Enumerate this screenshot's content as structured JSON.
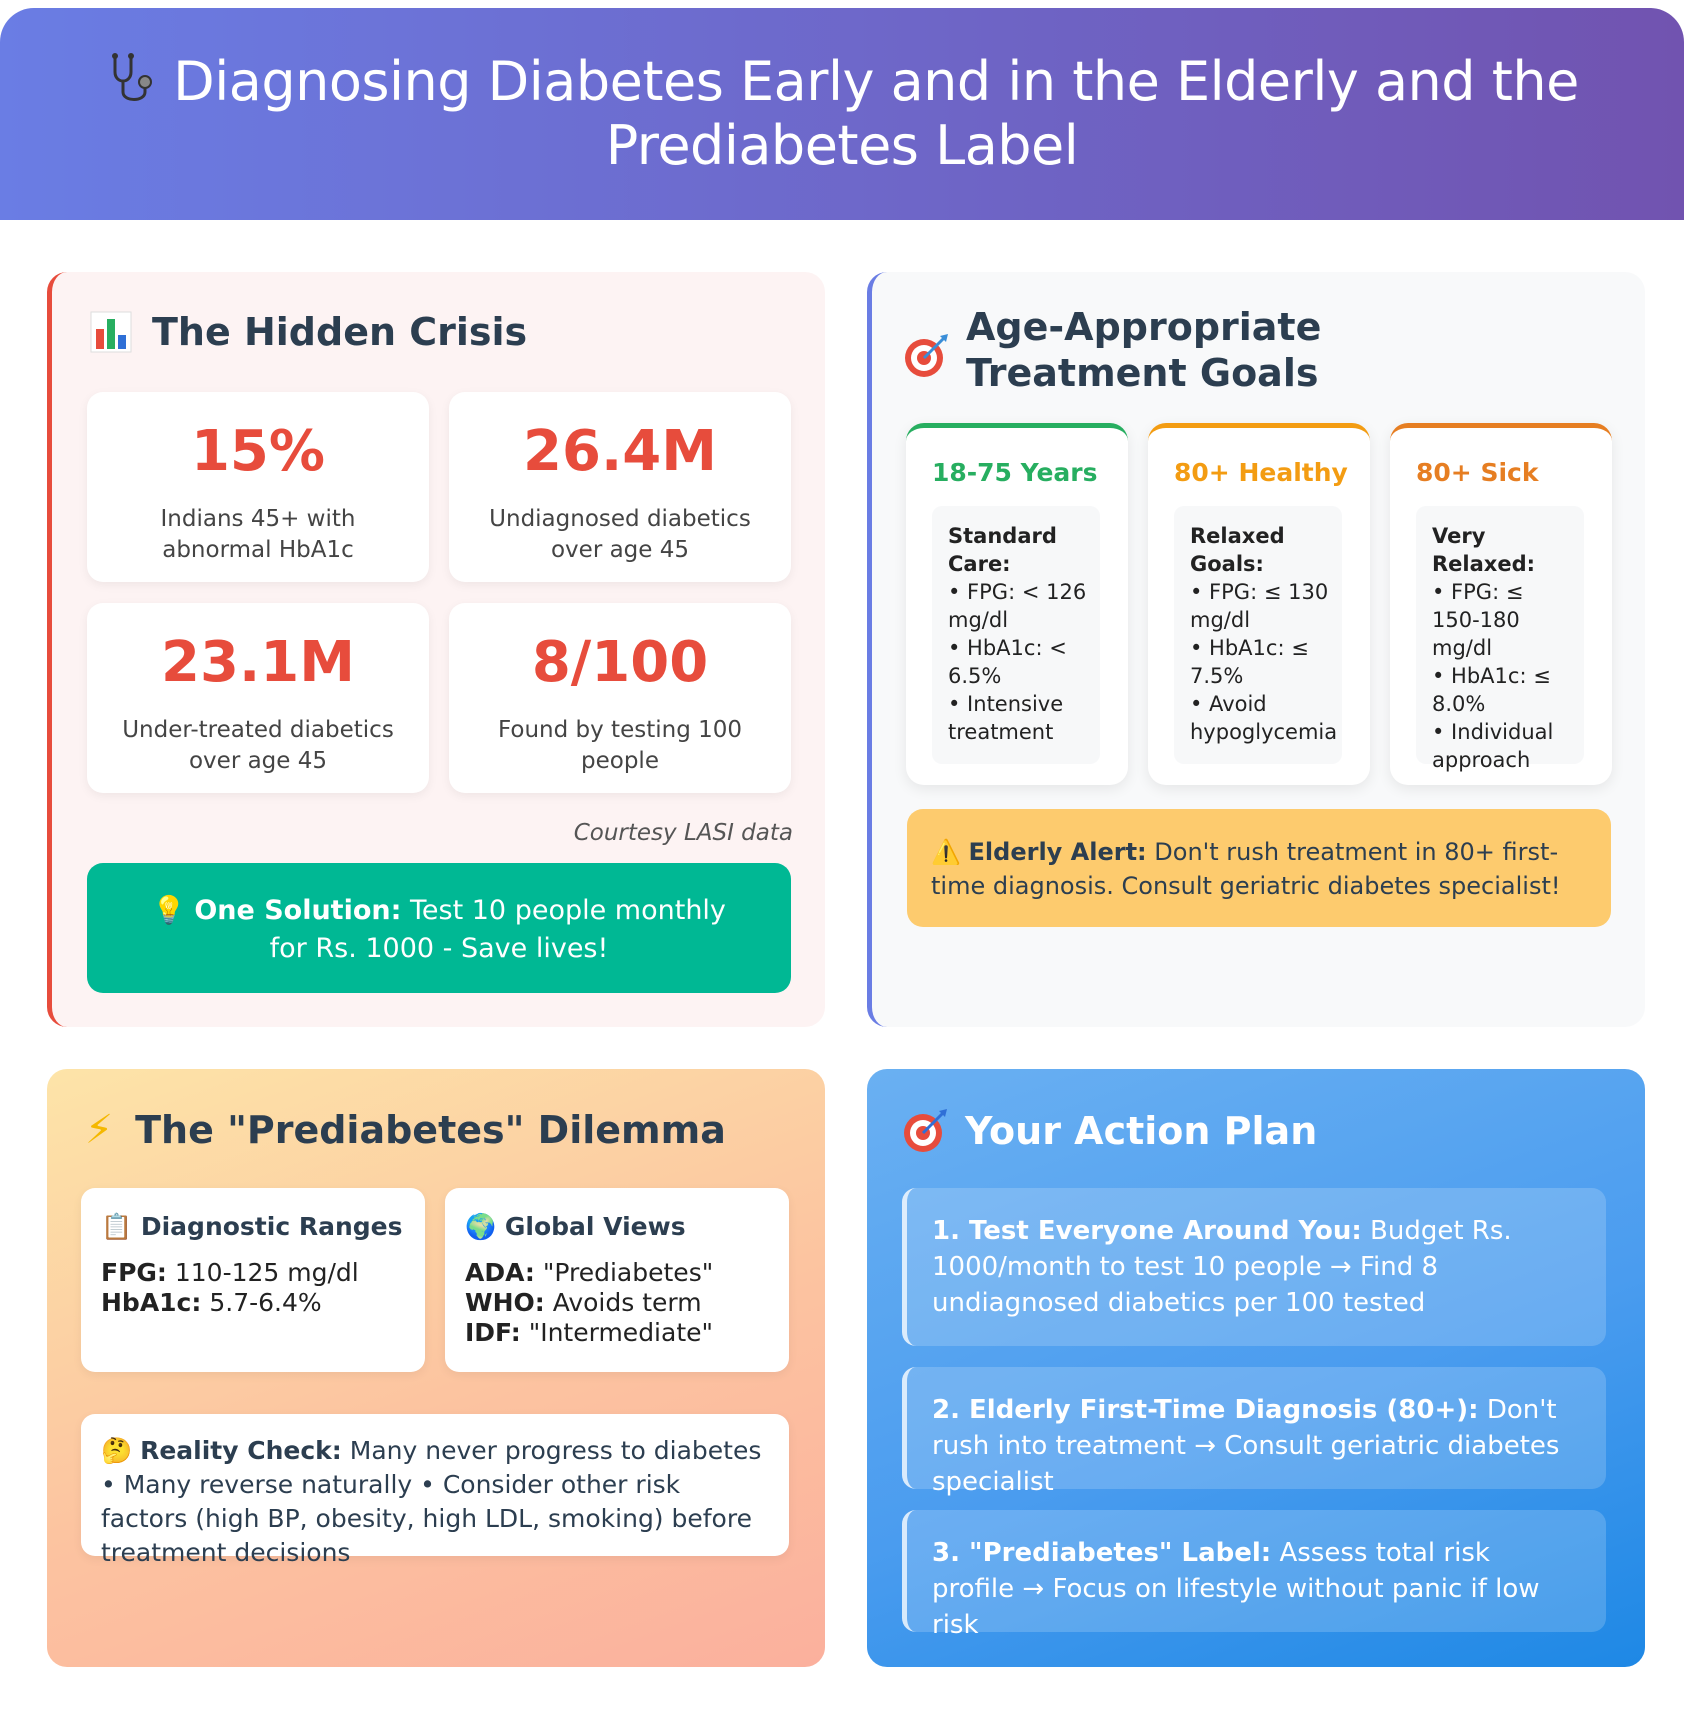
{
  "header": {
    "title": "Diagnosing Diabetes Early and in the Elderly and the Prediabetes Label",
    "icon": "stethoscope-icon"
  },
  "hidden_crisis": {
    "icon": "bar-chart-icon",
    "title": "The Hidden Crisis",
    "stats": [
      {
        "value": "15%",
        "label": "Indians 45+ with abnormal HbA1c"
      },
      {
        "value": "26.4M",
        "label": "Undiagnosed diabetics over age 45"
      },
      {
        "value": "23.1M",
        "label": "Under-treated diabetics over age 45"
      },
      {
        "value": "8/100",
        "label": "Found by testing 100 people"
      }
    ],
    "courtesy": "Courtesy LASI data",
    "solution": {
      "icon": "lightbulb-icon",
      "label": "One Solution:",
      "text": "Test 10 people monthly for Rs. 1000 - Save lives!"
    }
  },
  "treatment_goals": {
    "icon": "target-icon",
    "title": "Age-Appropriate Treatment Goals",
    "groups": [
      {
        "title": "18-75 Years",
        "color": "#27ae60",
        "heading": "Standard Care:",
        "items": [
          "• FPG: < 126 mg/dl",
          "• HbA1c: < 6.5%",
          "• Intensive treatment"
        ]
      },
      {
        "title": "80+ Healthy",
        "color": "#f39c12",
        "heading": "Relaxed Goals:",
        "items": [
          "• FPG: ≤ 130 mg/dl",
          "• HbA1c: ≤ 7.5%",
          "• Avoid hypoglycemia"
        ]
      },
      {
        "title": "80+ Sick",
        "color": "#e67e22",
        "heading": "Very Relaxed:",
        "items": [
          "• FPG: ≤ 150-180 mg/dl",
          "• HbA1c: ≤ 8.0%",
          "• Individual approach"
        ]
      }
    ],
    "alert": {
      "icon": "warning-icon",
      "label": "Elderly Alert:",
      "text": "Don't rush treatment in 80+ first-time diagnosis. Consult geriatric diabetes specialist!"
    }
  },
  "prediabetes": {
    "icon": "lightning-icon",
    "title": "The \"Prediabetes\" Dilemma",
    "ranges": {
      "icon": "clipboard-icon",
      "title": "Diagnostic Ranges",
      "rows": [
        {
          "k": "FPG:",
          "v": "110-125 mg/dl"
        },
        {
          "k": "HbA1c:",
          "v": "5.7-6.4%"
        }
      ]
    },
    "views": {
      "icon": "globe-icon",
      "title": "Global Views",
      "rows": [
        {
          "k": "ADA:",
          "v": "\"Prediabetes\""
        },
        {
          "k": "WHO:",
          "v": "Avoids term"
        },
        {
          "k": "IDF:",
          "v": "\"Intermediate\""
        }
      ]
    },
    "reality": {
      "icon": "thinking-face-icon",
      "label": "Reality Check:",
      "text": "Many never progress to diabetes • Many reverse naturally • Consider other risk factors (high BP, obesity, high LDL, smoking) before treatment decisions"
    }
  },
  "action_plan": {
    "icon": "target-icon",
    "title": "Your Action Plan",
    "steps": [
      {
        "label": "1. Test Everyone Around You:",
        "text": "Budget Rs. 1000/month to test 10 people → Find 8 undiagnosed diabetics per 100 tested"
      },
      {
        "label": "2. Elderly First-Time Diagnosis (80+):",
        "text": "Don't rush into treatment → Consult geriatric diabetes specialist"
      },
      {
        "label": "3. \"Prediabetes\" Label:",
        "text": "Assess total risk profile → Focus on lifestyle without panic if low risk"
      }
    ]
  }
}
